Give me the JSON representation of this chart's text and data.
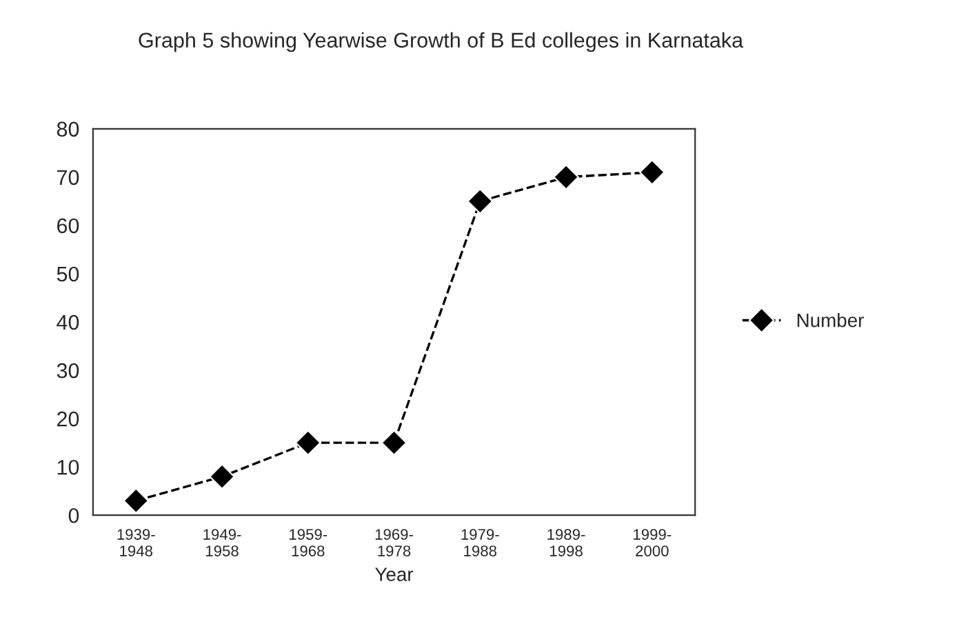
{
  "chart_data": {
    "type": "line",
    "title": "Graph 5 showing Yearwise Growth of B Ed colleges in Karnataka",
    "xlabel": "Year",
    "categories": [
      "1939-\n1948",
      "1949-\n1958",
      "1959-\n1968",
      "1969-\n1978",
      "1979-\n1988",
      "1989-\n1998",
      "1999-\n2000"
    ],
    "series": [
      {
        "name": "Number",
        "color": "#000000",
        "values": [
          3,
          8,
          15,
          15,
          65,
          70,
          71
        ]
      }
    ],
    "ylim": [
      0,
      80
    ],
    "yticks": [
      0,
      10,
      20,
      30,
      40,
      50,
      60,
      70,
      80
    ],
    "marker": "diamond",
    "line_style": "dashed",
    "legend": "right",
    "grid": false
  }
}
